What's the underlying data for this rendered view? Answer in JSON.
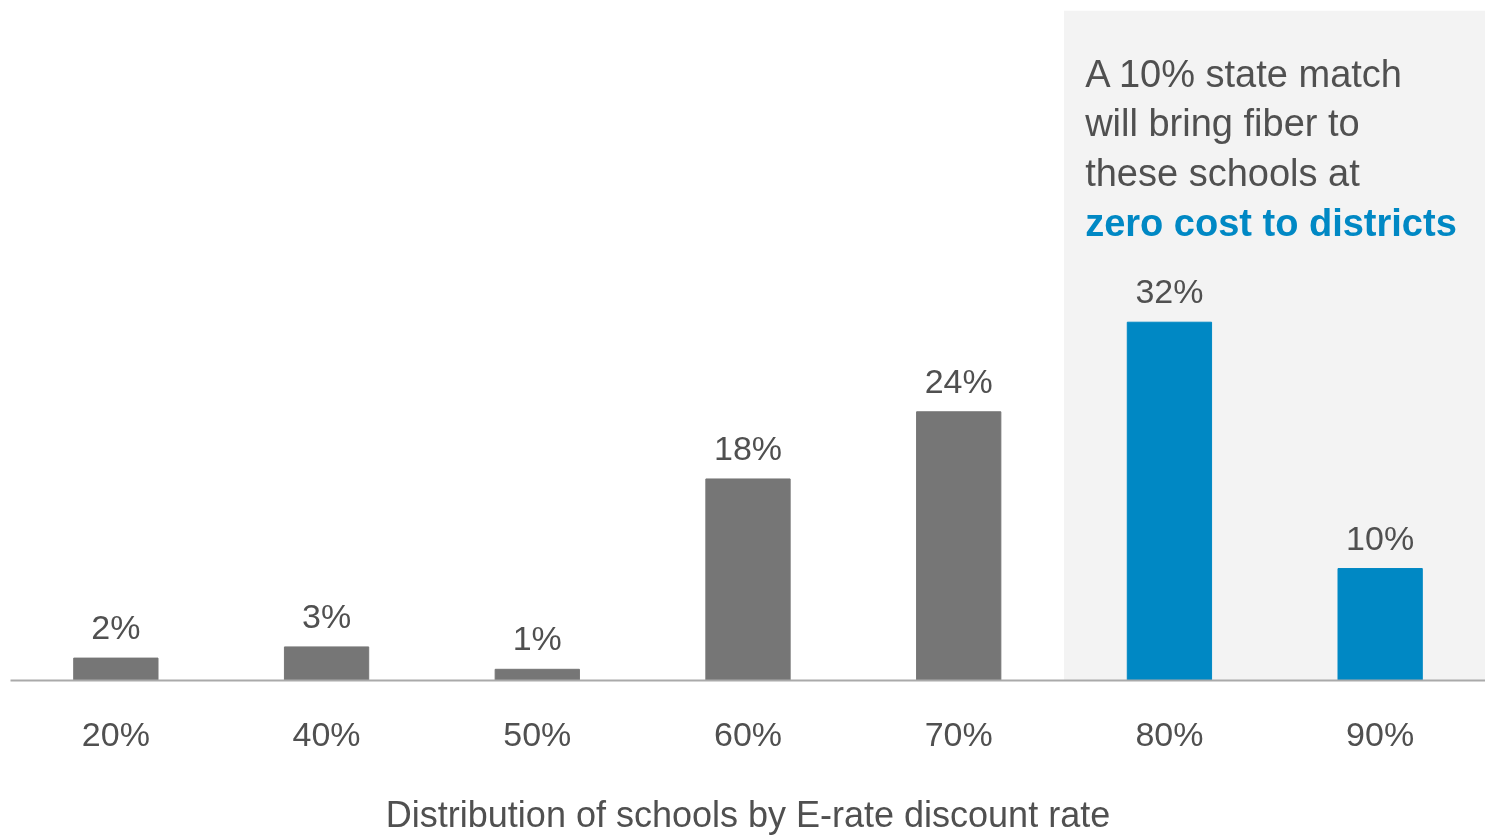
{
  "chart_data": {
    "type": "bar",
    "xlabel": "Distribution of schools by E-rate discount rate",
    "categories": [
      "20%",
      "40%",
      "50%",
      "60%",
      "70%",
      "80%",
      "90%"
    ],
    "values": [
      2,
      3,
      1,
      18,
      24,
      32,
      10
    ],
    "colors": [
      "#767676",
      "#767676",
      "#767676",
      "#767676",
      "#767676",
      "#0088c4",
      "#0088c4"
    ],
    "value_labels": [
      "2%",
      "3%",
      "1%",
      "18%",
      "24%",
      "32%",
      "10%"
    ],
    "bands": [
      {
        "axis": "x",
        "from": "80%",
        "to": "90%",
        "color": "#f3f3f3"
      }
    ],
    "annotations": [
      "A 10% state match will bring fiber to these schools at",
      "zero cost to districts"
    ],
    "grid": false
  }
}
